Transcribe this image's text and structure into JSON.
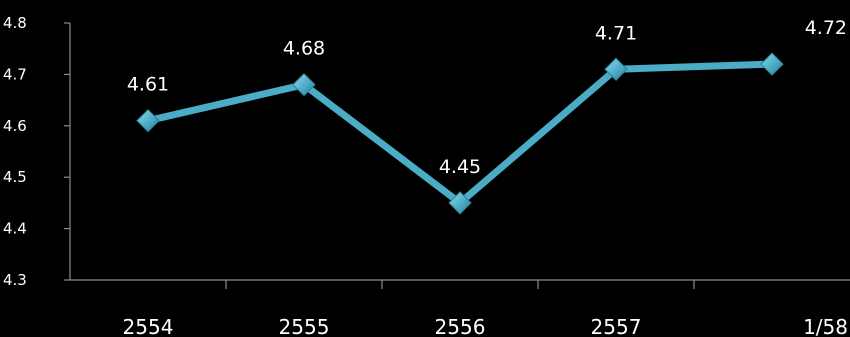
{
  "chart_data": {
    "type": "line",
    "categories": [
      "2554",
      "2555",
      "2556",
      "2557",
      "1/58"
    ],
    "values": [
      4.61,
      4.68,
      4.45,
      4.71,
      4.72
    ],
    "data_labels": [
      "4.61",
      "4.68",
      "4.45",
      "4.71",
      "4.72"
    ],
    "yticks": [
      "4.3",
      "4.4",
      "4.5",
      "4.6",
      "4.7",
      "4.8"
    ],
    "ylim": [
      4.3,
      4.8
    ],
    "title": "",
    "xlabel": "",
    "ylabel": "",
    "grid": false,
    "legend": "none",
    "colors": {
      "background": "#000000",
      "axis": "#8c8c8c",
      "line": "#4bacc6",
      "marker": "#4bacc6",
      "marker_edge": "#2b7f96",
      "text": "#ffffff"
    }
  }
}
